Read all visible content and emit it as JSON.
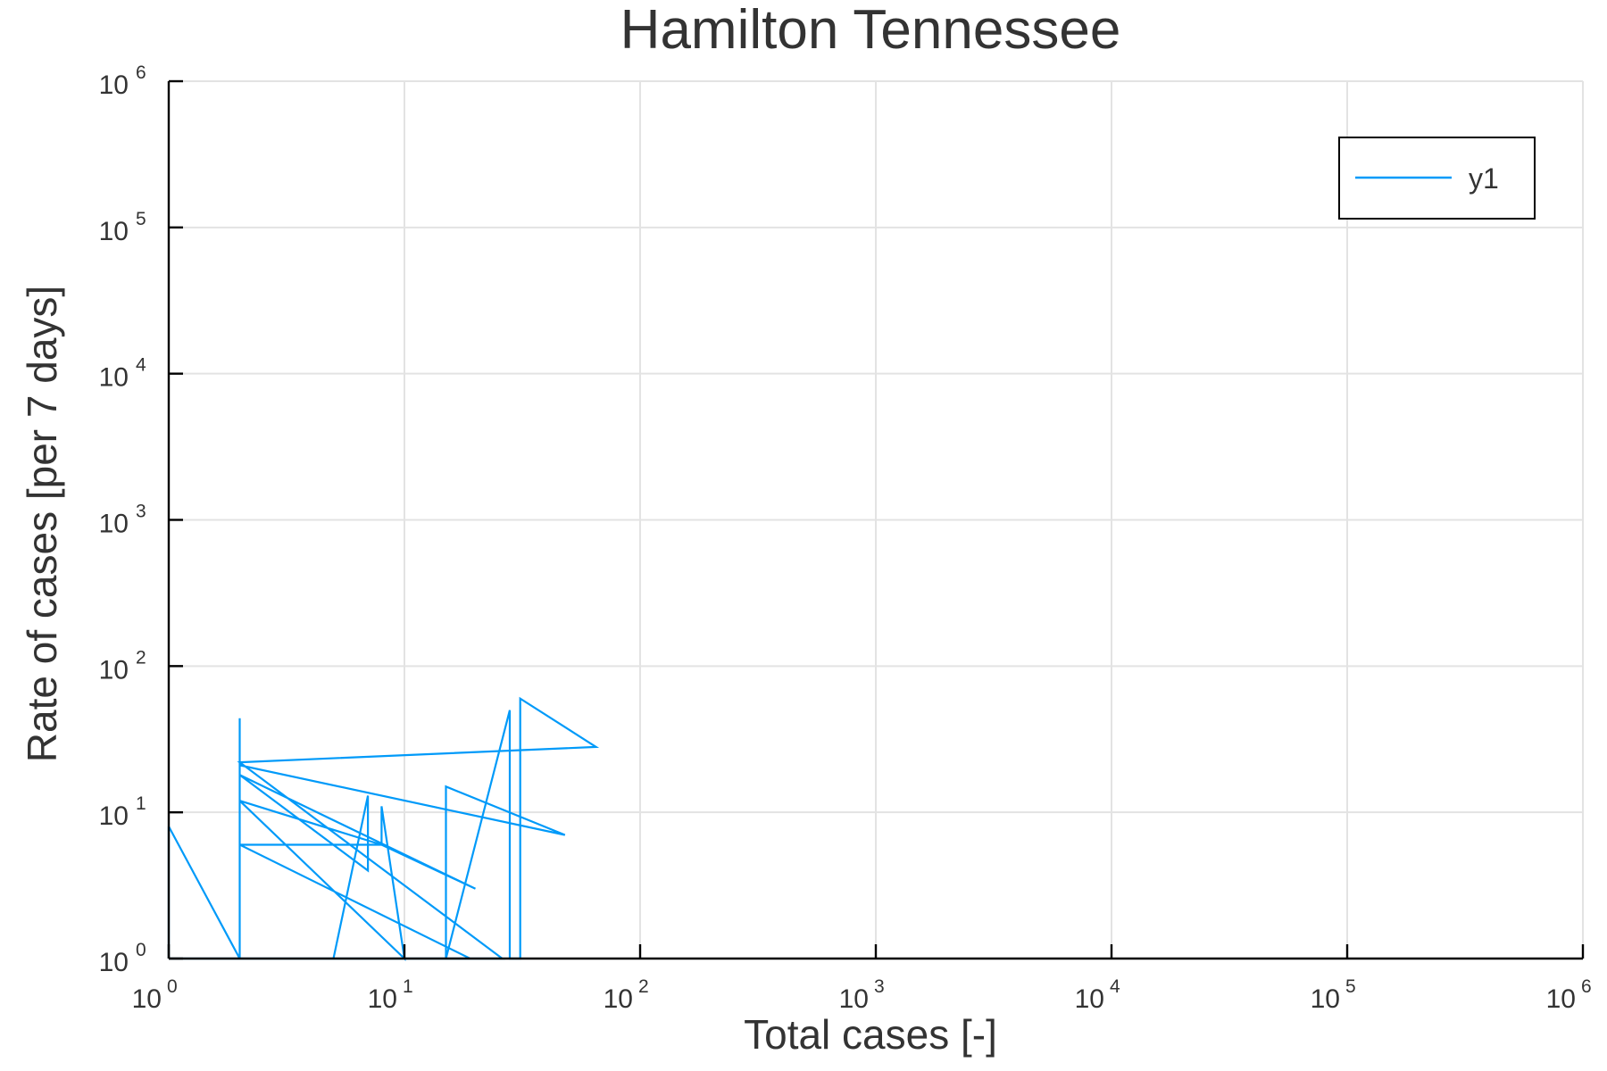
{
  "chart_data": {
    "type": "line",
    "title": "Hamilton Tennessee",
    "xlabel": "Total cases [-]",
    "ylabel": "Rate of cases [per 7 days]",
    "xscale": "log10",
    "yscale": "log10",
    "xlim": [
      1,
      1000000
    ],
    "ylim": [
      1,
      1000000
    ],
    "grid": true,
    "legend_position": "top-right",
    "colors": {
      "series": "#009af9",
      "grid": "#e3e3e3",
      "axis": "#000000",
      "text": "#333333"
    },
    "x_ticks": [
      {
        "base": "10",
        "exp": "0",
        "value": 1
      },
      {
        "base": "10",
        "exp": "1",
        "value": 10
      },
      {
        "base": "10",
        "exp": "2",
        "value": 100
      },
      {
        "base": "10",
        "exp": "3",
        "value": 1000
      },
      {
        "base": "10",
        "exp": "4",
        "value": 10000
      },
      {
        "base": "10",
        "exp": "5",
        "value": 100000
      },
      {
        "base": "10",
        "exp": "6",
        "value": 1000000
      }
    ],
    "y_ticks": [
      {
        "base": "10",
        "exp": "0",
        "value": 1
      },
      {
        "base": "10",
        "exp": "1",
        "value": 10
      },
      {
        "base": "10",
        "exp": "2",
        "value": 100
      },
      {
        "base": "10",
        "exp": "3",
        "value": 1000
      },
      {
        "base": "10",
        "exp": "4",
        "value": 10000
      },
      {
        "base": "10",
        "exp": "5",
        "value": 100000
      },
      {
        "base": "10",
        "exp": "6",
        "value": 1000000
      }
    ],
    "series": [
      {
        "name": "y1",
        "x": [
          1,
          1,
          2,
          2,
          2,
          2,
          2,
          8,
          8,
          10,
          2,
          8,
          20,
          2,
          7,
          7,
          5,
          7,
          7,
          26,
          2,
          2,
          65,
          31,
          31,
          28,
          28,
          15,
          15,
          48,
          2,
          2,
          19,
          8,
          8,
          10,
          1
        ],
        "y": [
          1,
          8,
          1,
          44,
          6,
          6,
          6,
          6,
          11,
          1,
          12,
          6,
          3,
          18,
          4,
          13,
          1,
          1,
          1,
          1,
          22,
          22,
          28,
          60,
          1,
          1,
          50,
          1,
          15,
          7,
          21,
          6,
          1,
          1,
          1,
          1,
          1
        ]
      }
    ]
  }
}
